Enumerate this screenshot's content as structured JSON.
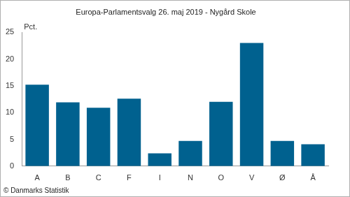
{
  "chart_data": {
    "type": "bar",
    "title": "Europa-Parlamentsvalg 26. maj 2019 - Nygård Skole",
    "ylabel": "Pct.",
    "footer": "© Danmarks Statistik",
    "categories": [
      "A",
      "B",
      "C",
      "F",
      "I",
      "N",
      "O",
      "V",
      "Ø",
      "Å"
    ],
    "values": [
      15.2,
      11.9,
      10.9,
      12.6,
      2.4,
      4.7,
      12.0,
      23.0,
      4.7,
      4.1
    ],
    "color": "#00618f",
    "ylim": [
      0,
      25
    ],
    "yticks": [
      0,
      5,
      10,
      15,
      20,
      25
    ],
    "grid": false
  }
}
